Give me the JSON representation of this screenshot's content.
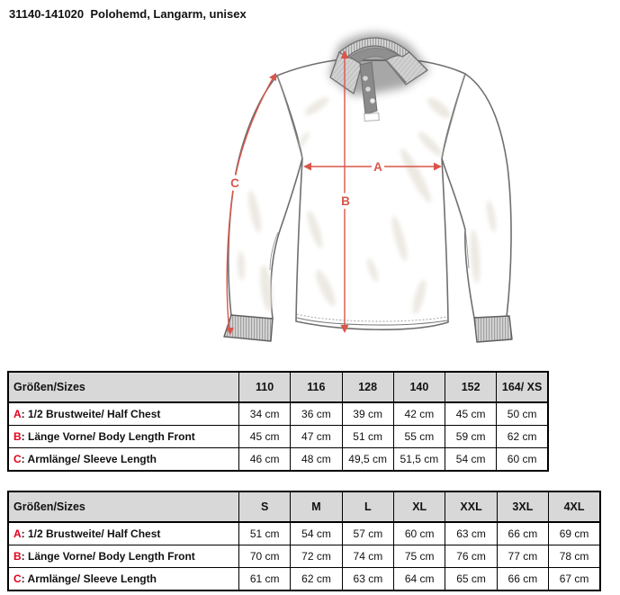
{
  "title": "31140-141020  Polohemd, Langarm, unisex",
  "diagram": {
    "labels": {
      "a": "A",
      "b": "B",
      "c": "C"
    },
    "arrow_color": "#d9564a"
  },
  "colors": {
    "table_letter_red": "#e2001a",
    "header_gray": "#d8d8d8",
    "outline_gray": "#6f6f6f"
  },
  "tables": [
    {
      "name": "kids-sizes",
      "header": {
        "label": "Größen/Sizes",
        "sizes": [
          "110",
          "116",
          "128",
          "140",
          "152",
          "164/ XS"
        ]
      },
      "rows": [
        {
          "letter": "A",
          "label": "1/2 Brustweite/ Half Chest",
          "values": [
            "34 cm",
            "36 cm",
            "39 cm",
            "42 cm",
            "45 cm",
            "50 cm"
          ]
        },
        {
          "letter": "B",
          "label": "Länge Vorne/ Body Length Front",
          "values": [
            "45 cm",
            "47 cm",
            "51 cm",
            "55 cm",
            "59 cm",
            "62 cm"
          ]
        },
        {
          "letter": "C",
          "label": "Armlänge/ Sleeve Length",
          "values": [
            "46 cm",
            "48 cm",
            "49,5 cm",
            "51,5 cm",
            "54 cm",
            "60 cm"
          ]
        }
      ]
    },
    {
      "name": "adult-sizes",
      "header": {
        "label": "Größen/Sizes",
        "sizes": [
          "S",
          "M",
          "L",
          "XL",
          "XXL",
          "3XL",
          "4XL"
        ]
      },
      "rows": [
        {
          "letter": "A",
          "label": "1/2 Brustweite/ Half Chest",
          "values": [
            "51 cm",
            "54 cm",
            "57 cm",
            "60 cm",
            "63 cm",
            "66 cm",
            "69 cm"
          ]
        },
        {
          "letter": "B",
          "label": "Länge Vorne/ Body Length Front",
          "values": [
            "70 cm",
            "72 cm",
            "74 cm",
            "75 cm",
            "76 cm",
            "77 cm",
            "78 cm"
          ]
        },
        {
          "letter": "C",
          "label": "Armlänge/ Sleeve Length",
          "values": [
            "61 cm",
            "62 cm",
            "63 cm",
            "64 cm",
            "65 cm",
            "66 cm",
            "67 cm"
          ]
        }
      ]
    }
  ]
}
